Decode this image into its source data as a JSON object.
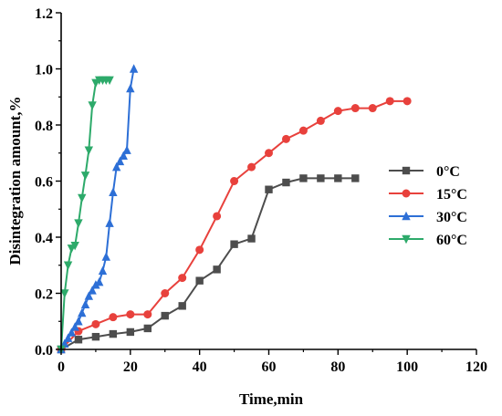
{
  "chart_data": {
    "type": "line",
    "title": "",
    "xlabel": "Time,min",
    "ylabel": "Disintegration amount,%",
    "xlim": [
      0,
      120
    ],
    "ylim": [
      0,
      1.2
    ],
    "xticks": [
      "0",
      "20",
      "40",
      "60",
      "80",
      "100",
      "120"
    ],
    "yticks": [
      "0.0",
      "0.2",
      "0.4",
      "0.6",
      "0.8",
      "1.0",
      "1.2"
    ],
    "grid": false,
    "legend_position": "right",
    "series": [
      {
        "name": "0°C",
        "color": "#4d4d4d",
        "marker": "square",
        "x": [
          0,
          5,
          10,
          15,
          20,
          25,
          30,
          35,
          40,
          45,
          50,
          55,
          60,
          65,
          70,
          75,
          80,
          85
        ],
        "y": [
          0,
          0.035,
          0.045,
          0.055,
          0.062,
          0.075,
          0.12,
          0.155,
          0.245,
          0.285,
          0.375,
          0.395,
          0.57,
          0.595,
          0.61,
          0.61,
          0.61,
          0.61
        ]
      },
      {
        "name": "15°C",
        "color": "#e8413c",
        "marker": "circle",
        "x": [
          0,
          5,
          10,
          15,
          20,
          25,
          30,
          35,
          40,
          45,
          50,
          55,
          60,
          65,
          70,
          75,
          80,
          85,
          90,
          95,
          100
        ],
        "y": [
          0,
          0.065,
          0.09,
          0.115,
          0.125,
          0.125,
          0.2,
          0.255,
          0.355,
          0.475,
          0.6,
          0.65,
          0.7,
          0.75,
          0.78,
          0.815,
          0.85,
          0.86,
          0.86,
          0.885,
          0.885
        ]
      },
      {
        "name": "30°C",
        "color": "#2d6fd6",
        "marker": "triangle-up",
        "x": [
          0,
          1,
          2,
          3,
          4,
          5,
          6,
          7,
          8,
          9,
          10,
          11,
          12,
          13,
          14,
          15,
          16,
          17,
          18,
          19,
          20,
          21
        ],
        "y": [
          0,
          0.02,
          0.04,
          0.06,
          0.08,
          0.1,
          0.13,
          0.16,
          0.19,
          0.21,
          0.23,
          0.24,
          0.28,
          0.33,
          0.45,
          0.56,
          0.65,
          0.67,
          0.69,
          0.71,
          0.93,
          1.0
        ]
      },
      {
        "name": "60°C",
        "color": "#2daa6a",
        "marker": "triangle-down",
        "x": [
          0,
          1,
          2,
          3,
          4,
          5,
          6,
          7,
          8,
          9,
          10,
          11,
          12,
          13,
          14
        ],
        "y": [
          0,
          0.2,
          0.3,
          0.36,
          0.37,
          0.45,
          0.54,
          0.62,
          0.71,
          0.87,
          0.95,
          0.96,
          0.96,
          0.96,
          0.96
        ]
      }
    ]
  }
}
